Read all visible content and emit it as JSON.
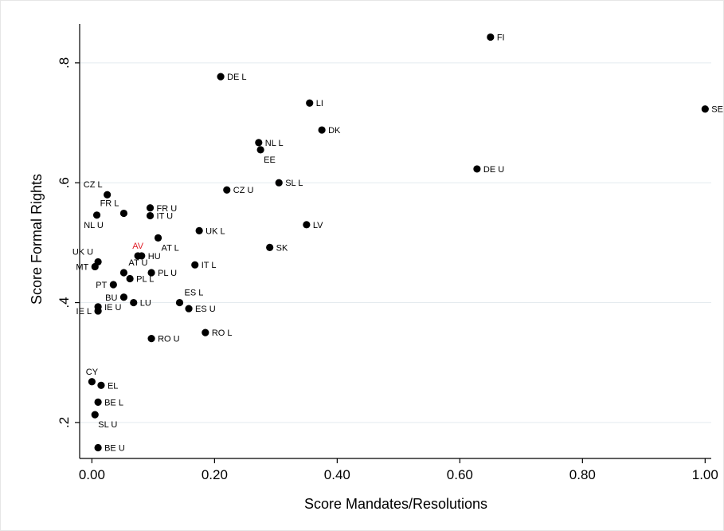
{
  "chart_data": {
    "type": "scatter",
    "title": "",
    "xlabel": "Score Mandates/Resolutions",
    "ylabel": "Score Formal Rights",
    "xlim": [
      -0.02,
      1.01
    ],
    "ylim": [
      0.14,
      0.865
    ],
    "xticks": [
      0,
      0.2,
      0.4,
      0.6,
      0.8,
      1.0
    ],
    "xtick_labels": [
      "0.00",
      "0.20",
      "0.40",
      "0.60",
      "0.80",
      "1.00"
    ],
    "yticks": [
      0.2,
      0.4,
      0.6,
      0.8
    ],
    "ytick_labels": [
      ".2",
      ".4",
      ".6",
      ".8"
    ],
    "grid": "horizontal",
    "highlight_color": "#e0202a",
    "marker_color": "#000000",
    "points": [
      {
        "label": "FI",
        "x": 0.65,
        "y": 0.843,
        "pos": "r"
      },
      {
        "label": "DE L",
        "x": 0.21,
        "y": 0.777,
        "pos": "r"
      },
      {
        "label": "SE",
        "x": 1.0,
        "y": 0.723,
        "pos": "r"
      },
      {
        "label": "LI",
        "x": 0.355,
        "y": 0.733,
        "pos": "r"
      },
      {
        "label": "DK",
        "x": 0.375,
        "y": 0.688,
        "pos": "r"
      },
      {
        "label": "NL L",
        "x": 0.272,
        "y": 0.667,
        "pos": "r"
      },
      {
        "label": "EE",
        "x": 0.275,
        "y": 0.655,
        "pos": "br"
      },
      {
        "label": "DE U",
        "x": 0.628,
        "y": 0.623,
        "pos": "r"
      },
      {
        "label": "SL L",
        "x": 0.305,
        "y": 0.6,
        "pos": "r"
      },
      {
        "label": "CZ U",
        "x": 0.22,
        "y": 0.588,
        "pos": "r"
      },
      {
        "label": "CZ L",
        "x": 0.025,
        "y": 0.58,
        "pos": "tl"
      },
      {
        "label": "FR L",
        "x": 0.052,
        "y": 0.549,
        "pos": "tl"
      },
      {
        "label": "FR U",
        "x": 0.095,
        "y": 0.558,
        "pos": "r"
      },
      {
        "label": "IT U",
        "x": 0.095,
        "y": 0.545,
        "pos": "r"
      },
      {
        "label": "NL U",
        "x": 0.008,
        "y": 0.546,
        "pos": "bl"
      },
      {
        "label": "LV",
        "x": 0.35,
        "y": 0.53,
        "pos": "r"
      },
      {
        "label": "UK L",
        "x": 0.175,
        "y": 0.52,
        "pos": "r"
      },
      {
        "label": "AT L",
        "x": 0.108,
        "y": 0.508,
        "pos": "br"
      },
      {
        "label": "SK",
        "x": 0.29,
        "y": 0.492,
        "pos": "r"
      },
      {
        "label": "AV",
        "x": 0.075,
        "y": 0.478,
        "pos": "t",
        "highlight": true
      },
      {
        "label": "HU",
        "x": 0.081,
        "y": 0.478,
        "pos": "r"
      },
      {
        "label": "UK U",
        "x": 0.01,
        "y": 0.468,
        "pos": "tl"
      },
      {
        "label": "IT L",
        "x": 0.168,
        "y": 0.463,
        "pos": "r"
      },
      {
        "label": "MT",
        "x": 0.005,
        "y": 0.46,
        "pos": "l"
      },
      {
        "label": "AT U",
        "x": 0.052,
        "y": 0.45,
        "pos": "tr"
      },
      {
        "label": "PL U",
        "x": 0.097,
        "y": 0.45,
        "pos": "r"
      },
      {
        "label": "PL L",
        "x": 0.062,
        "y": 0.44,
        "pos": "r"
      },
      {
        "label": "PT",
        "x": 0.035,
        "y": 0.43,
        "pos": "l"
      },
      {
        "label": "BU",
        "x": 0.052,
        "y": 0.409,
        "pos": "l"
      },
      {
        "label": "LU",
        "x": 0.068,
        "y": 0.4,
        "pos": "r"
      },
      {
        "label": "ES L",
        "x": 0.143,
        "y": 0.4,
        "pos": "tr"
      },
      {
        "label": "ES U",
        "x": 0.158,
        "y": 0.39,
        "pos": "r"
      },
      {
        "label": "IE U",
        "x": 0.01,
        "y": 0.393,
        "pos": "r"
      },
      {
        "label": "IE L",
        "x": 0.01,
        "y": 0.386,
        "pos": "l"
      },
      {
        "label": "RO L",
        "x": 0.185,
        "y": 0.35,
        "pos": "r"
      },
      {
        "label": "RO U",
        "x": 0.097,
        "y": 0.34,
        "pos": "r"
      },
      {
        "label": "CY",
        "x": 0.0,
        "y": 0.268,
        "pos": "t"
      },
      {
        "label": "EL",
        "x": 0.015,
        "y": 0.262,
        "pos": "r"
      },
      {
        "label": "BE L",
        "x": 0.01,
        "y": 0.234,
        "pos": "r"
      },
      {
        "label": "SL U",
        "x": 0.005,
        "y": 0.213,
        "pos": "br"
      },
      {
        "label": "BE U",
        "x": 0.01,
        "y": 0.158,
        "pos": "r"
      }
    ]
  }
}
